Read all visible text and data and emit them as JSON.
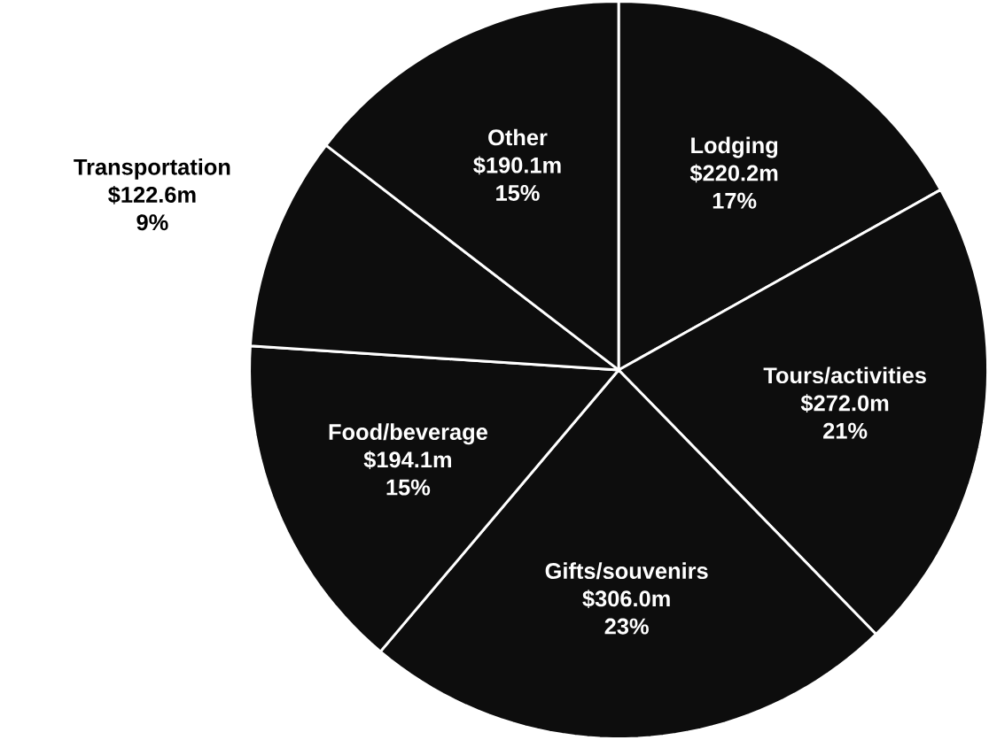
{
  "chart_data": {
    "type": "pie",
    "categories": [
      "Lodging",
      "Tours/activities",
      "Gifts/souvenirs",
      "Food/beverage",
      "Transportation",
      "Other"
    ],
    "values": [
      220.2,
      272.0,
      306.0,
      194.1,
      122.6,
      190.1
    ],
    "value_labels": [
      "$220.2m",
      "$272.0m",
      "$306.0m",
      "$194.1m",
      "$122.6m",
      "$190.1m"
    ],
    "annotations": [
      "17%",
      "21%",
      "23%",
      "15%",
      "9%",
      "15%"
    ],
    "colors": [
      "#0d0d0d",
      "#0d0d0d",
      "#0d0d0d",
      "#0d0d0d",
      "#0d0d0d",
      "#0d0d0d"
    ]
  }
}
